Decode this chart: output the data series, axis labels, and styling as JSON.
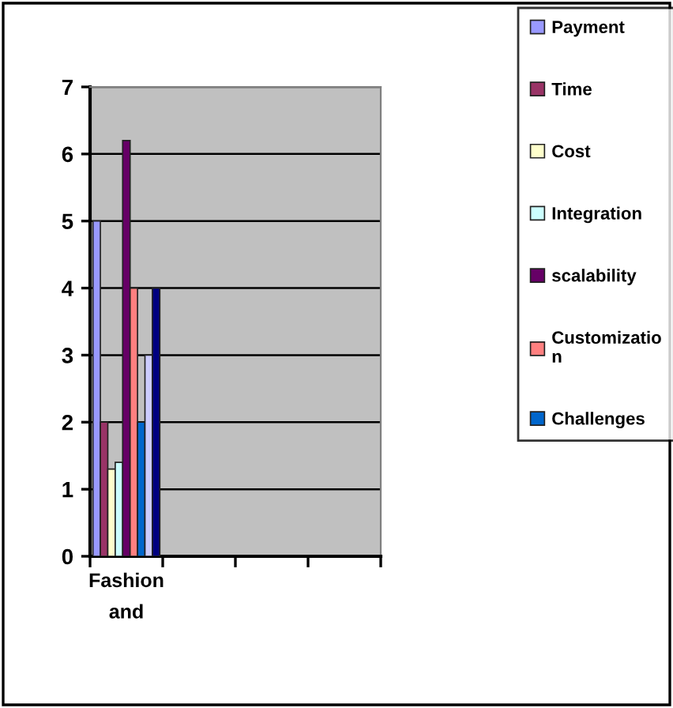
{
  "chart_data": {
    "type": "bar",
    "categories": [
      "Fashion\nand",
      null,
      null,
      null
    ],
    "series": [
      {
        "name": "Payment",
        "color": "#9999ff",
        "values": [
          5,
          null,
          null,
          null
        ]
      },
      {
        "name": "Time",
        "color": "#993366",
        "values": [
          2,
          null,
          null,
          null
        ]
      },
      {
        "name": "Cost",
        "color": "#ffffcc",
        "values": [
          1.3,
          null,
          null,
          null
        ]
      },
      {
        "name": "Integration",
        "color": "#ccffff",
        "values": [
          1.4,
          null,
          null,
          null
        ]
      },
      {
        "name": "scalability",
        "color": "#660066",
        "values": [
          6.2,
          null,
          null,
          null
        ]
      },
      {
        "name": "Customization",
        "color": "#ff8080",
        "values": [
          4,
          null,
          null,
          null
        ]
      },
      {
        "name": "Challenges",
        "color": "#0066cc",
        "values": [
          2,
          null,
          null,
          null
        ]
      },
      {
        "color": "#ccccff",
        "values": [
          3,
          null,
          null,
          null
        ]
      },
      {
        "color": "#000080",
        "values": [
          4,
          null,
          null,
          null
        ]
      }
    ],
    "ylim": [
      0,
      7
    ],
    "yticks": [
      0,
      1,
      2,
      3,
      4,
      5,
      6,
      7
    ],
    "grid": "y",
    "legend": "right"
  }
}
